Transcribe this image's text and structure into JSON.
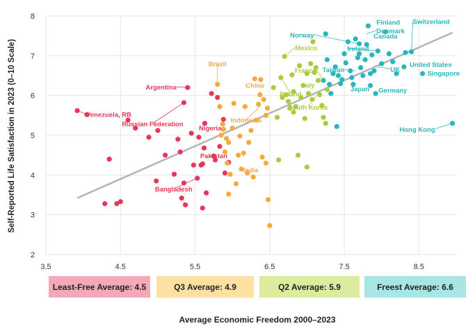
{
  "colors": {
    "least_free": "#e8355a",
    "q3": "#f6a93c",
    "q2": "#a9cc3c",
    "freest": "#26b6bb",
    "trend": "#b4b4b4",
    "legend_least_free": "#f4a9b8",
    "legend_q3": "#fde1a3",
    "legend_q2": "#dcec9f",
    "legend_freest": "#a8e6e6"
  },
  "legend": {
    "least_free": "Least-Free Average: 4.5",
    "q3": "Q3 Average: 4.9",
    "q2": "Q2 Average: 5.9",
    "freest": "Freest Average: 6.6"
  },
  "chart_data": {
    "type": "scatter",
    "title": "",
    "xlabel": "Average Economic Freedom 2000–2023",
    "ylabel": "Self-Reported Life Satisfaction in 2023 (0–10 Scale)",
    "xlim": [
      3.5,
      9.0
    ],
    "ylim": [
      2,
      8
    ],
    "xticks": [
      "3.5",
      "4.5",
      "5.5",
      "6.5",
      "7.5",
      "8.5"
    ],
    "yticks": [
      "2",
      "3",
      "4",
      "5",
      "6",
      "7",
      "8"
    ],
    "trendline": {
      "x": [
        3.92,
        8.95
      ],
      "y": [
        3.42,
        7.58
      ]
    },
    "series": [
      {
        "name": "Least-Free",
        "group": "least_free",
        "points": [
          [
            3.92,
            5.62
          ],
          [
            4.05,
            5.52
          ],
          [
            4.29,
            3.28
          ],
          [
            4.35,
            4.4
          ],
          [
            4.45,
            3.28
          ],
          [
            4.5,
            3.33
          ],
          [
            4.6,
            5.38
          ],
          [
            4.7,
            5.18
          ],
          [
            4.88,
            4.95
          ],
          [
            5.0,
            5.12
          ],
          [
            4.98,
            3.85
          ],
          [
            5.1,
            4.5
          ],
          [
            5.22,
            4.02
          ],
          [
            5.27,
            4.9
          ],
          [
            5.3,
            4.58
          ],
          [
            5.32,
            3.42
          ],
          [
            5.35,
            5.82
          ],
          [
            5.37,
            3.25
          ],
          [
            5.4,
            6.2
          ],
          [
            5.45,
            5.05
          ],
          [
            5.48,
            4.25
          ],
          [
            5.53,
            3.92
          ],
          [
            5.55,
            4.95
          ],
          [
            5.58,
            4.25
          ],
          [
            5.6,
            3.17
          ],
          [
            5.62,
            4.68
          ],
          [
            5.63,
            5.3
          ],
          [
            5.65,
            3.55
          ],
          [
            5.72,
            6.05
          ],
          [
            5.75,
            4.48
          ],
          [
            5.77,
            4.38
          ],
          [
            5.8,
            5.95
          ],
          [
            5.83,
            4.72
          ],
          [
            5.88,
            5.4
          ],
          [
            5.9,
            4.05
          ],
          [
            5.95,
            4.32
          ],
          [
            5.6,
            4.28
          ],
          [
            5.35,
            3.8
          ]
        ]
      },
      {
        "name": "Q3",
        "group": "q3",
        "points": [
          [
            5.8,
            6.28
          ],
          [
            5.83,
            5.72
          ],
          [
            5.85,
            5.0
          ],
          [
            5.87,
            5.28
          ],
          [
            5.88,
            5.15
          ],
          [
            5.9,
            4.58
          ],
          [
            5.92,
            4.92
          ],
          [
            5.93,
            4.3
          ],
          [
            5.95,
            3.52
          ],
          [
            5.97,
            4.02
          ],
          [
            6.0,
            5.18
          ],
          [
            6.02,
            5.8
          ],
          [
            6.05,
            3.78
          ],
          [
            6.08,
            4.5
          ],
          [
            6.1,
            4.98
          ],
          [
            6.12,
            4.15
          ],
          [
            6.15,
            4.55
          ],
          [
            6.17,
            5.72
          ],
          [
            6.2,
            4.05
          ],
          [
            6.22,
            4.82
          ],
          [
            6.25,
            5.12
          ],
          [
            6.28,
            3.95
          ],
          [
            6.3,
            6.42
          ],
          [
            6.32,
            5.38
          ],
          [
            6.35,
            5.78
          ],
          [
            6.37,
            6.02
          ],
          [
            6.4,
            4.45
          ],
          [
            6.42,
            5.9
          ],
          [
            6.45,
            4.3
          ],
          [
            6.47,
            5.68
          ],
          [
            6.48,
            3.38
          ],
          [
            6.5,
            2.73
          ],
          [
            6.38,
            6.4
          ],
          [
            6.45,
            5.5
          ],
          [
            5.95,
            4.82
          ]
        ]
      },
      {
        "name": "Q2",
        "group": "q2",
        "points": [
          [
            6.55,
            6.2
          ],
          [
            6.6,
            5.45
          ],
          [
            6.62,
            4.38
          ],
          [
            6.65,
            6.45
          ],
          [
            6.67,
            5.95
          ],
          [
            6.7,
            6.98
          ],
          [
            6.72,
            6.02
          ],
          [
            6.75,
            5.85
          ],
          [
            6.77,
            5.68
          ],
          [
            6.8,
            6.52
          ],
          [
            6.82,
            6.1
          ],
          [
            6.85,
            5.72
          ],
          [
            6.88,
            4.5
          ],
          [
            6.9,
            6.75
          ],
          [
            6.92,
            5.95
          ],
          [
            6.95,
            6.25
          ],
          [
            6.97,
            5.42
          ],
          [
            7.0,
            4.2
          ],
          [
            7.02,
            6.05
          ],
          [
            7.05,
            6.8
          ],
          [
            7.07,
            5.9
          ],
          [
            7.08,
            7.35
          ],
          [
            7.1,
            6.58
          ],
          [
            7.12,
            6.7
          ],
          [
            7.15,
            6.38
          ],
          [
            7.17,
            6.02
          ],
          [
            7.2,
            5.75
          ],
          [
            7.22,
            5.45
          ],
          [
            7.25,
            5.3
          ],
          [
            7.27,
            6.15
          ],
          [
            7.0,
            6.55
          ],
          [
            6.82,
            5.58
          ]
        ]
      },
      {
        "name": "Freest",
        "group": "freest",
        "points": [
          [
            7.22,
            6.38
          ],
          [
            7.25,
            7.55
          ],
          [
            7.27,
            6.9
          ],
          [
            7.3,
            6.28
          ],
          [
            7.32,
            6.05
          ],
          [
            7.35,
            6.55
          ],
          [
            7.38,
            6.72
          ],
          [
            7.4,
            5.22
          ],
          [
            7.42,
            6.5
          ],
          [
            7.45,
            6.3
          ],
          [
            7.47,
            6.4
          ],
          [
            7.5,
            7.05
          ],
          [
            7.52,
            6.82
          ],
          [
            7.55,
            7.35
          ],
          [
            7.58,
            6.62
          ],
          [
            7.6,
            6.45
          ],
          [
            7.62,
            6.28
          ],
          [
            7.65,
            7.42
          ],
          [
            7.68,
            6.95
          ],
          [
            7.7,
            7.3
          ],
          [
            7.72,
            6.7
          ],
          [
            7.75,
            6.5
          ],
          [
            7.78,
            6.9
          ],
          [
            7.8,
            7.28
          ],
          [
            7.82,
            7.75
          ],
          [
            7.85,
            6.55
          ],
          [
            7.87,
            7.02
          ],
          [
            7.9,
            6.62
          ],
          [
            7.92,
            6.05
          ],
          [
            7.95,
            7.12
          ],
          [
            8.0,
            6.8
          ],
          [
            8.05,
            7.6
          ],
          [
            8.1,
            7.05
          ],
          [
            8.15,
            6.85
          ],
          [
            8.2,
            6.55
          ],
          [
            8.3,
            6.72
          ],
          [
            8.32,
            7.08
          ],
          [
            8.4,
            7.1
          ],
          [
            8.55,
            6.55
          ],
          [
            8.95,
            5.3
          ],
          [
            7.85,
            6.25
          ],
          [
            7.7,
            7.05
          ]
        ]
      }
    ],
    "annotations": [
      {
        "text": "Venezuela, RB",
        "group": "least_free",
        "x": 3.92,
        "y": 5.62
      },
      {
        "text": "Argentina",
        "group": "least_free",
        "x": 5.4,
        "y": 6.2
      },
      {
        "text": "Russian Federation",
        "group": "least_free",
        "x": 5.35,
        "y": 5.82
      },
      {
        "text": "Nigeria",
        "group": "least_free",
        "x": 5.45,
        "y": 5.05
      },
      {
        "text": "Pakistan",
        "group": "least_free",
        "x": 5.75,
        "y": 4.48
      },
      {
        "text": "Bangladesh",
        "group": "least_free",
        "x": 5.53,
        "y": 3.92
      },
      {
        "text": "Brazil",
        "group": "q3",
        "x": 5.8,
        "y": 6.28
      },
      {
        "text": "China",
        "group": "q3",
        "x": 6.3,
        "y": 6.42
      },
      {
        "text": "Indonesia",
        "group": "q3",
        "x": 6.37,
        "y": 5.72
      },
      {
        "text": "India",
        "group": "q3",
        "x": 6.05,
        "y": 4.05
      },
      {
        "text": "Mexico",
        "group": "q2",
        "x": 6.7,
        "y": 6.98
      },
      {
        "text": "Poland",
        "group": "q2",
        "x": 6.65,
        "y": 6.45
      },
      {
        "text": "France",
        "group": "q2",
        "x": 7.22,
        "y": 6.38
      },
      {
        "text": "Italy",
        "group": "q2",
        "x": 7.12,
        "y": 6.1
      },
      {
        "text": "South Korea",
        "group": "q2",
        "x": 7.15,
        "y": 6.05
      },
      {
        "text": "Norway",
        "group": "freest",
        "x": 7.7,
        "y": 7.3
      },
      {
        "text": "Finland",
        "group": "freest",
        "x": 7.82,
        "y": 7.75
      },
      {
        "text": "Denmark",
        "group": "freest",
        "x": 7.8,
        "y": 7.55
      },
      {
        "text": "Canada",
        "group": "freest",
        "x": 7.8,
        "y": 7.28
      },
      {
        "text": "Switzerland",
        "group": "freest",
        "x": 8.4,
        "y": 7.1
      },
      {
        "text": "Ireland",
        "group": "freest",
        "x": 7.95,
        "y": 7.12
      },
      {
        "text": "Taiwan",
        "group": "freest",
        "x": 7.65,
        "y": 6.62
      },
      {
        "text": "UK",
        "group": "freest",
        "x": 7.95,
        "y": 6.72
      },
      {
        "text": "United States",
        "group": "freest",
        "x": 8.32,
        "y": 6.72
      },
      {
        "text": "Singapore",
        "group": "freest",
        "x": 8.55,
        "y": 6.55
      },
      {
        "text": "Japan",
        "group": "freest",
        "x": 7.6,
        "y": 6.28
      },
      {
        "text": "Germany",
        "group": "freest",
        "x": 7.92,
        "y": 6.28
      },
      {
        "text": "Hong Kong",
        "group": "freest",
        "x": 8.95,
        "y": 5.3
      }
    ]
  }
}
